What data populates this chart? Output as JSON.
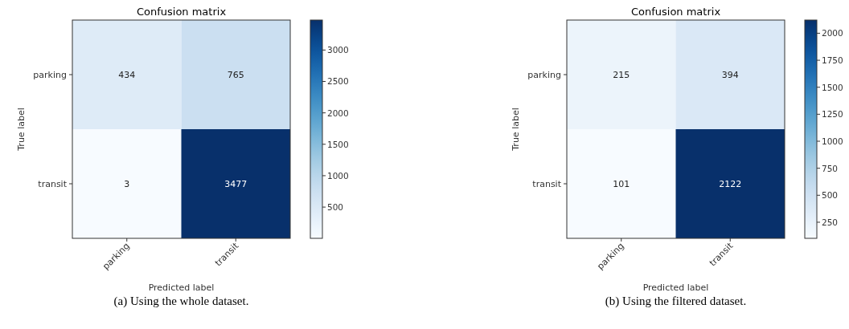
{
  "chart_data": [
    {
      "type": "heatmap",
      "title": "Confusion matrix",
      "xlabel": "Predicted label",
      "ylabel": "True label",
      "categories": [
        "parking",
        "transit"
      ],
      "y_categories": [
        "parking",
        "transit"
      ],
      "cells": [
        [
          434,
          765
        ],
        [
          3,
          3477
        ]
      ],
      "clim": [
        3,
        3477
      ],
      "cticks": [
        500,
        1000,
        1500,
        2000,
        2500,
        3000
      ],
      "data_labels": true,
      "annotations": [
        "(a) Using the whole dataset."
      ]
    },
    {
      "type": "heatmap",
      "title": "Confusion matrix",
      "xlabel": "Predicted label",
      "ylabel": "True label",
      "categories": [
        "parking",
        "transit"
      ],
      "y_categories": [
        "parking",
        "transit"
      ],
      "cells": [
        [
          215,
          394
        ],
        [
          101,
          2122
        ]
      ],
      "clim": [
        101,
        2122
      ],
      "cticks": [
        250,
        500,
        750,
        1000,
        1250,
        1500,
        1750,
        2000
      ],
      "data_labels": true,
      "annotations": [
        "(b) Using the filtered dataset."
      ]
    }
  ]
}
